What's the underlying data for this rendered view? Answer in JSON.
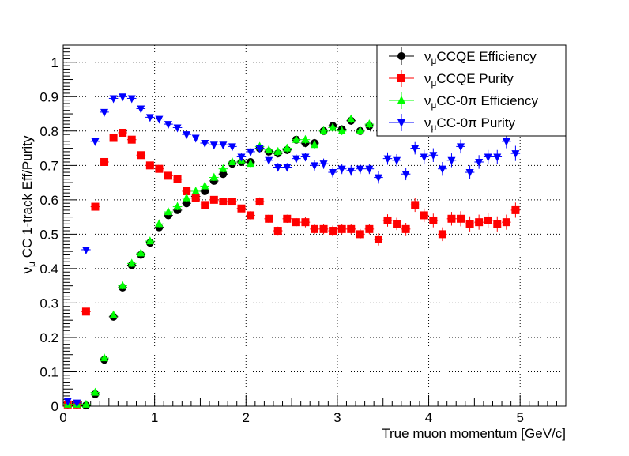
{
  "chart_data": {
    "type": "scatter",
    "title": "",
    "xlabel": "True muon momentum [GeV/c]",
    "ylabel_parts": [
      "ν",
      "μ",
      " CC 1-track Eff/Purity"
    ],
    "xlim": [
      0,
      5.5
    ],
    "ylim": [
      0,
      1.05
    ],
    "x_ticks": [
      "0",
      "1",
      "2",
      "3",
      "4",
      "5"
    ],
    "y_ticks": [
      "0",
      "0.1",
      "0.2",
      "0.3",
      "0.4",
      "0.5",
      "0.6",
      "0.7",
      "0.8",
      "0.9",
      "1"
    ],
    "grid": true,
    "legend_position": "top-right",
    "bin_halfwidth": 0.05,
    "series": [
      {
        "name_parts": [
          "ν",
          "μ",
          "CCQE Efficiency"
        ],
        "color": "#000000",
        "marker": "circle",
        "x": [
          0.05,
          0.15,
          0.25,
          0.35,
          0.45,
          0.55,
          0.65,
          0.75,
          0.85,
          0.95,
          1.05,
          1.15,
          1.25,
          1.35,
          1.45,
          1.55,
          1.65,
          1.75,
          1.85,
          1.95,
          2.05,
          2.15,
          2.25,
          2.35,
          2.45,
          2.55,
          2.65,
          2.75,
          2.85,
          2.95,
          3.05,
          3.15,
          3.25,
          3.35
        ],
        "y": [
          0.005,
          0.005,
          0.002,
          0.035,
          0.135,
          0.26,
          0.345,
          0.41,
          0.44,
          0.475,
          0.52,
          0.555,
          0.57,
          0.59,
          0.61,
          0.625,
          0.655,
          0.675,
          0.705,
          0.71,
          0.71,
          0.75,
          0.74,
          0.735,
          0.745,
          0.775,
          0.765,
          0.765,
          0.8,
          0.815,
          0.805,
          0.83,
          0.8,
          0.815
        ],
        "err": [
          0.005,
          0.005,
          0.005,
          0.007,
          0.009,
          0.01,
          0.01,
          0.01,
          0.01,
          0.01,
          0.01,
          0.01,
          0.01,
          0.01,
          0.01,
          0.01,
          0.01,
          0.01,
          0.01,
          0.01,
          0.01,
          0.01,
          0.012,
          0.012,
          0.012,
          0.012,
          0.012,
          0.012,
          0.012,
          0.012,
          0.012,
          0.012,
          0.012,
          0.012
        ]
      },
      {
        "name_parts": [
          "ν",
          "μ",
          "CCQE Purity"
        ],
        "color": "#ff0000",
        "marker": "square",
        "x": [
          0.05,
          0.15,
          0.25,
          0.35,
          0.45,
          0.55,
          0.65,
          0.75,
          0.85,
          0.95,
          1.05,
          1.15,
          1.25,
          1.35,
          1.45,
          1.55,
          1.65,
          1.75,
          1.85,
          1.95,
          2.05,
          2.15,
          2.25,
          2.35,
          2.45,
          2.55,
          2.65,
          2.75,
          2.85,
          2.95,
          3.05,
          3.15,
          3.25,
          3.35,
          3.45,
          3.55,
          3.65,
          3.75,
          3.85,
          3.95,
          4.05,
          4.15,
          4.25,
          4.35,
          4.45,
          4.55,
          4.65,
          4.75,
          4.85,
          4.95
        ],
        "y": [
          0.005,
          0.005,
          0.275,
          0.58,
          0.71,
          0.78,
          0.795,
          0.775,
          0.73,
          0.7,
          0.69,
          0.67,
          0.66,
          0.625,
          0.605,
          0.585,
          0.6,
          0.595,
          0.595,
          0.575,
          0.555,
          0.595,
          0.545,
          0.51,
          0.545,
          0.535,
          0.535,
          0.515,
          0.515,
          0.51,
          0.515,
          0.515,
          0.5,
          0.515,
          0.485,
          0.54,
          0.53,
          0.515,
          0.585,
          0.555,
          0.54,
          0.5,
          0.545,
          0.545,
          0.53,
          0.535,
          0.54,
          0.53,
          0.535,
          0.57
        ],
        "err": [
          0.005,
          0.005,
          0.008,
          0.008,
          0.008,
          0.008,
          0.008,
          0.008,
          0.008,
          0.008,
          0.008,
          0.008,
          0.008,
          0.01,
          0.01,
          0.01,
          0.01,
          0.01,
          0.01,
          0.01,
          0.012,
          0.012,
          0.012,
          0.012,
          0.012,
          0.012,
          0.015,
          0.015,
          0.015,
          0.015,
          0.015,
          0.015,
          0.015,
          0.015,
          0.018,
          0.018,
          0.018,
          0.018,
          0.02,
          0.02,
          0.02,
          0.02,
          0.02,
          0.022,
          0.022,
          0.022,
          0.022,
          0.022,
          0.022,
          0.022
        ]
      },
      {
        "name_parts": [
          "ν",
          "μ",
          "CC-0π Efficiency"
        ],
        "color": "#00ff00",
        "marker": "triangle-up",
        "x": [
          0.05,
          0.15,
          0.25,
          0.35,
          0.45,
          0.55,
          0.65,
          0.75,
          0.85,
          0.95,
          1.05,
          1.15,
          1.25,
          1.35,
          1.45,
          1.55,
          1.65,
          1.75,
          1.85,
          1.95,
          2.05,
          2.15,
          2.25,
          2.35,
          2.45,
          2.55,
          2.65,
          2.75,
          2.85,
          2.95,
          3.05,
          3.15,
          3.25,
          3.35
        ],
        "y": [
          0.005,
          0.005,
          0.005,
          0.04,
          0.14,
          0.265,
          0.35,
          0.415,
          0.445,
          0.48,
          0.53,
          0.565,
          0.58,
          0.605,
          0.625,
          0.64,
          0.665,
          0.69,
          0.71,
          0.715,
          0.705,
          0.755,
          0.745,
          0.74,
          0.75,
          0.775,
          0.775,
          0.76,
          0.8,
          0.81,
          0.8,
          0.835,
          0.8,
          0.82
        ],
        "err": [
          0.005,
          0.005,
          0.005,
          0.007,
          0.009,
          0.01,
          0.01,
          0.01,
          0.01,
          0.01,
          0.01,
          0.01,
          0.01,
          0.01,
          0.01,
          0.01,
          0.01,
          0.01,
          0.01,
          0.01,
          0.01,
          0.01,
          0.012,
          0.012,
          0.012,
          0.012,
          0.012,
          0.012,
          0.012,
          0.012,
          0.012,
          0.012,
          0.012,
          0.012
        ]
      },
      {
        "name_parts": [
          "ν",
          "μ",
          "CC-0π Purity"
        ],
        "color": "#0000ff",
        "marker": "triangle-down",
        "x": [
          0.05,
          0.15,
          0.25,
          0.35,
          0.45,
          0.55,
          0.65,
          0.75,
          0.85,
          0.95,
          1.05,
          1.15,
          1.25,
          1.35,
          1.45,
          1.55,
          1.65,
          1.75,
          1.85,
          1.95,
          2.05,
          2.15,
          2.25,
          2.35,
          2.45,
          2.55,
          2.65,
          2.75,
          2.85,
          2.95,
          3.05,
          3.15,
          3.25,
          3.35,
          3.45,
          3.55,
          3.65,
          3.75,
          3.85,
          3.95,
          4.05,
          4.15,
          4.25,
          4.35,
          4.45,
          4.55,
          4.65,
          4.75,
          4.85,
          4.95
        ],
        "y": [
          0.015,
          0.01,
          0.455,
          0.77,
          0.855,
          0.895,
          0.9,
          0.895,
          0.865,
          0.84,
          0.835,
          0.82,
          0.81,
          0.79,
          0.78,
          0.765,
          0.76,
          0.76,
          0.755,
          0.725,
          0.74,
          0.75,
          0.715,
          0.695,
          0.695,
          0.72,
          0.725,
          0.7,
          0.705,
          0.68,
          0.69,
          0.685,
          0.69,
          0.69,
          0.665,
          0.72,
          0.715,
          0.675,
          0.75,
          0.725,
          0.73,
          0.69,
          0.715,
          0.755,
          0.68,
          0.71,
          0.725,
          0.725,
          0.77,
          0.735
        ],
        "err": [
          0.005,
          0.005,
          0.008,
          0.008,
          0.006,
          0.006,
          0.006,
          0.006,
          0.006,
          0.006,
          0.006,
          0.006,
          0.006,
          0.008,
          0.008,
          0.008,
          0.008,
          0.008,
          0.008,
          0.01,
          0.01,
          0.01,
          0.012,
          0.012,
          0.012,
          0.012,
          0.012,
          0.015,
          0.015,
          0.015,
          0.015,
          0.015,
          0.015,
          0.015,
          0.018,
          0.018,
          0.018,
          0.018,
          0.018,
          0.02,
          0.02,
          0.02,
          0.02,
          0.02,
          0.02,
          0.02,
          0.02,
          0.02,
          0.02,
          0.022
        ]
      }
    ]
  }
}
